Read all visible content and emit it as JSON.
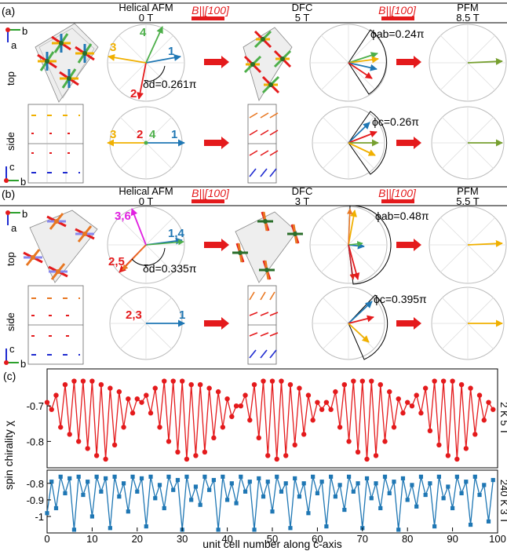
{
  "panel_a": {
    "tag": "(a)",
    "phases": [
      "Helical AFM",
      "DFC",
      "PFM"
    ],
    "fields": [
      "0 T",
      "5 T",
      "8.5 T"
    ],
    "field_label": "B||[100]",
    "views": [
      "top",
      "side"
    ],
    "axes_top": [
      "b",
      "a"
    ],
    "axes_side": [
      "c",
      "b"
    ],
    "top_labels": [
      "1",
      "2",
      "3",
      "4"
    ],
    "side_labels": [
      "1",
      "2",
      "3",
      "4"
    ],
    "delta_d": "δd=0.261π",
    "phi_ab": "ϕab=0.24π",
    "phi_c": "ϕc=0.26π"
  },
  "panel_b": {
    "tag": "(b)",
    "phases": [
      "Helical AFM",
      "DFC",
      "PFM"
    ],
    "fields": [
      "0 T",
      "3 T",
      "5.5 T"
    ],
    "field_label": "B||[100]",
    "views": [
      "top",
      "side"
    ],
    "axes_top": [
      "b",
      "a"
    ],
    "axes_side": [
      "c",
      "b"
    ],
    "top_labels": [
      "1,4",
      "2,5",
      "3,6"
    ],
    "side_labels": [
      "1",
      "2,3"
    ],
    "delta_d": "δd=0.335π",
    "phi_ab": "ϕab=0.48π",
    "phi_c": "ϕc=0.395π"
  },
  "panel_c": {
    "tag": "(c)",
    "ylabel": "spin chirality χ",
    "xlabel": "unit cell number along c-axis",
    "right_labels": [
      "2 K 5 T",
      "240 K 3 T"
    ]
  },
  "colors": {
    "red": "#e41a1c",
    "blue": "#1f77b4",
    "green": "#4daf4a",
    "yellow": "#f0b000",
    "orange": "#e87722",
    "magenta": "#e020e0",
    "olive": "#77a030"
  },
  "chart_data": [
    {
      "type": "line",
      "x": [
        0,
        1,
        2,
        3,
        4,
        5,
        6,
        7,
        8,
        9,
        10,
        11,
        12,
        13,
        14,
        15,
        16,
        17,
        18,
        19,
        20,
        21,
        22,
        23,
        24,
        25,
        26,
        27,
        28,
        29,
        30,
        31,
        32,
        33,
        34,
        35,
        36,
        37,
        38,
        39,
        40,
        41,
        42,
        43,
        44,
        45,
        46,
        47,
        48,
        49,
        50,
        51,
        52,
        53,
        54,
        55,
        56,
        57,
        58,
        59,
        60,
        61,
        62,
        63,
        64,
        65,
        66,
        67,
        68,
        69,
        70,
        71,
        72,
        73,
        74,
        75,
        76,
        77,
        78,
        79,
        80,
        81,
        82,
        83,
        84,
        85,
        86,
        87,
        88,
        89,
        90,
        91,
        92,
        93,
        94,
        95,
        96,
        97,
        98,
        99
      ],
      "values": [
        -0.69,
        -0.71,
        -0.67,
        -0.76,
        -0.64,
        -0.78,
        -0.63,
        -0.8,
        -0.63,
        -0.82,
        -0.63,
        -0.84,
        -0.64,
        -0.85,
        -0.65,
        -0.81,
        -0.66,
        -0.76,
        -0.68,
        -0.72,
        -0.68,
        -0.69,
        -0.67,
        -0.72,
        -0.65,
        -0.76,
        -0.63,
        -0.8,
        -0.63,
        -0.83,
        -0.63,
        -0.85,
        -0.64,
        -0.84,
        -0.64,
        -0.83,
        -0.65,
        -0.79,
        -0.66,
        -0.76,
        -0.68,
        -0.73,
        -0.7,
        -0.7,
        -0.67,
        -0.74,
        -0.64,
        -0.79,
        -0.63,
        -0.84,
        -0.63,
        -0.85,
        -0.63,
        -0.84,
        -0.64,
        -0.81,
        -0.65,
        -0.78,
        -0.67,
        -0.74,
        -0.69,
        -0.71,
        -0.69,
        -0.71,
        -0.66,
        -0.76,
        -0.64,
        -0.8,
        -0.63,
        -0.83,
        -0.63,
        -0.85,
        -0.63,
        -0.84,
        -0.64,
        -0.8,
        -0.66,
        -0.76,
        -0.68,
        -0.72,
        -0.69,
        -0.7,
        -0.67,
        -0.72,
        -0.65,
        -0.77,
        -0.63,
        -0.81,
        -0.63,
        -0.84,
        -0.63,
        -0.85,
        -0.64,
        -0.82,
        -0.65,
        -0.78,
        -0.67,
        -0.74,
        -0.69,
        -0.71
      ],
      "xlim": [
        0,
        100
      ],
      "ylim": [
        -0.87,
        -0.6
      ],
      "yticks": [
        -0.7,
        -0.8
      ],
      "grid": false
    },
    {
      "type": "line",
      "x": [
        0,
        1,
        2,
        3,
        4,
        5,
        6,
        7,
        8,
        9,
        10,
        11,
        12,
        13,
        14,
        15,
        16,
        17,
        18,
        19,
        20,
        21,
        22,
        23,
        24,
        25,
        26,
        27,
        28,
        29,
        30,
        31,
        32,
        33,
        34,
        35,
        36,
        37,
        38,
        39,
        40,
        41,
        42,
        43,
        44,
        45,
        46,
        47,
        48,
        49,
        50,
        51,
        52,
        53,
        54,
        55,
        56,
        57,
        58,
        59,
        60,
        61,
        62,
        63,
        64,
        65,
        66,
        67,
        68,
        69,
        70,
        71,
        72,
        73,
        74,
        75,
        76,
        77,
        78,
        79,
        80,
        81,
        82,
        83,
        84,
        85,
        86,
        87,
        88,
        89,
        90,
        91,
        92,
        93,
        94,
        95,
        96,
        97,
        98,
        99
      ],
      "values": [
        -0.98,
        -0.79,
        -0.95,
        -0.76,
        -0.86,
        -0.77,
        -1.08,
        -0.76,
        -0.87,
        -0.79,
        -1.0,
        -0.76,
        -0.85,
        -0.77,
        -1.07,
        -0.76,
        -0.88,
        -0.8,
        -0.97,
        -0.76,
        -0.85,
        -0.77,
        -1.06,
        -0.76,
        -0.89,
        -0.81,
        -0.95,
        -0.76,
        -0.84,
        -0.78,
        -1.08,
        -0.76,
        -0.9,
        -0.82,
        -0.93,
        -0.76,
        -0.84,
        -0.78,
        -1.08,
        -0.76,
        -0.9,
        -0.8,
        -0.92,
        -0.76,
        -0.85,
        -0.79,
        -1.08,
        -0.77,
        -0.88,
        -0.79,
        -0.97,
        -0.76,
        -0.85,
        -0.8,
        -1.07,
        -0.77,
        -0.88,
        -0.8,
        -0.98,
        -0.76,
        -0.86,
        -0.79,
        -1.06,
        -0.76,
        -0.88,
        -0.81,
        -0.96,
        -0.76,
        -0.85,
        -0.8,
        -1.07,
        -0.77,
        -0.89,
        -0.8,
        -0.95,
        -0.76,
        -0.86,
        -0.79,
        -1.08,
        -0.77,
        -0.9,
        -0.81,
        -0.94,
        -0.76,
        -0.87,
        -0.8,
        -1.06,
        -0.76,
        -0.89,
        -0.82,
        -0.95,
        -0.76,
        -0.86,
        -0.79,
        -1.05,
        -0.76,
        -0.87,
        -0.81,
        -1.03,
        -0.78
      ],
      "xlim": [
        0,
        100
      ],
      "ylim": [
        -1.09,
        -0.73
      ],
      "yticks": [
        -0.8,
        -0.9,
        -1
      ],
      "xticks": [
        0,
        10,
        20,
        30,
        40,
        50,
        60,
        70,
        80,
        90,
        100
      ],
      "grid": false
    }
  ]
}
